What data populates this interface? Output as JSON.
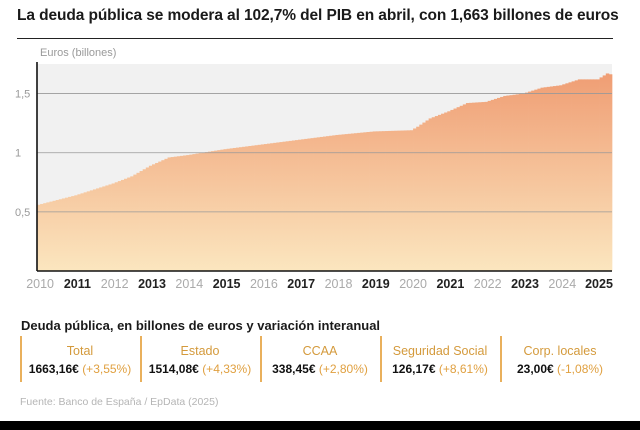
{
  "title": "La deuda pública se modera al 102,7% del PIB en abril, con 1,663 billones de euros",
  "chart_data": {
    "type": "bar",
    "ylabel": "Euros (billones)",
    "ylim": [
      0,
      1.75
    ],
    "y_ticks": [
      {
        "value": 0.5,
        "label": "0,5"
      },
      {
        "value": 1,
        "label": "1"
      },
      {
        "value": 1.5,
        "label": "1,5"
      }
    ],
    "x_ticks": [
      {
        "value": 2010,
        "label": "2010",
        "bold": false
      },
      {
        "value": 2011,
        "label": "2011",
        "bold": true
      },
      {
        "value": 2012,
        "label": "2012",
        "bold": false
      },
      {
        "value": 2013,
        "label": "2013",
        "bold": true
      },
      {
        "value": 2014,
        "label": "2014",
        "bold": false
      },
      {
        "value": 2015,
        "label": "2015",
        "bold": true
      },
      {
        "value": 2016,
        "label": "2016",
        "bold": false
      },
      {
        "value": 2017,
        "label": "2017",
        "bold": true
      },
      {
        "value": 2018,
        "label": "2018",
        "bold": false
      },
      {
        "value": 2019,
        "label": "2019",
        "bold": true
      },
      {
        "value": 2020,
        "label": "2020",
        "bold": false
      },
      {
        "value": 2021,
        "label": "2021",
        "bold": true
      },
      {
        "value": 2022,
        "label": "2022",
        "bold": false
      },
      {
        "value": 2023,
        "label": "2023",
        "bold": true
      },
      {
        "value": 2024,
        "label": "2024",
        "bold": false
      },
      {
        "value": 2025,
        "label": "2025",
        "bold": true
      }
    ],
    "x_start": "2009-12",
    "series": [
      {
        "frequency": "monthly",
        "keypoints": [
          [
            "2009-12",
            0.56
          ],
          [
            "2010-12",
            0.64
          ],
          [
            "2011-12",
            0.74
          ],
          [
            "2012-06",
            0.8
          ],
          [
            "2012-12",
            0.89
          ],
          [
            "2013-06",
            0.96
          ],
          [
            "2013-12",
            0.98
          ],
          [
            "2014-12",
            1.03
          ],
          [
            "2015-12",
            1.07
          ],
          [
            "2016-12",
            1.11
          ],
          [
            "2017-12",
            1.15
          ],
          [
            "2018-12",
            1.18
          ],
          [
            "2019-12",
            1.19
          ],
          [
            "2020-02",
            1.22
          ],
          [
            "2020-06",
            1.29
          ],
          [
            "2020-12",
            1.35
          ],
          [
            "2021-06",
            1.42
          ],
          [
            "2021-12",
            1.43
          ],
          [
            "2022-06",
            1.48
          ],
          [
            "2022-12",
            1.5
          ],
          [
            "2023-06",
            1.55
          ],
          [
            "2023-12",
            1.57
          ],
          [
            "2024-06",
            1.62
          ],
          [
            "2024-12",
            1.62
          ],
          [
            "2025-03",
            1.67
          ],
          [
            "2025-04",
            1.663
          ]
        ]
      }
    ],
    "grid": true,
    "colors": {
      "bar_top": "#ef9a70",
      "bar_bottom": "#fbe6bf",
      "grid": "#999999",
      "plot_bg": "#f1f1f1"
    }
  },
  "stats": {
    "title": "Deuda pública, en billones de euros y variación interanual",
    "items": [
      {
        "label": "Total",
        "value": "1663,16€",
        "change": "(+3,55%)"
      },
      {
        "label": "Estado",
        "value": "1514,08€",
        "change": "(+4,33%)"
      },
      {
        "label": "CCAA",
        "value": "338,45€",
        "change": "(+2,80%)"
      },
      {
        "label": "Seguridad Social",
        "value": "126,17€",
        "change": "(+8,61%)"
      },
      {
        "label": "Corp. locales",
        "value": "23,00€",
        "change": "(-1,08%)"
      }
    ]
  },
  "source": "Fuente: Banco de España / EpData (2025)"
}
